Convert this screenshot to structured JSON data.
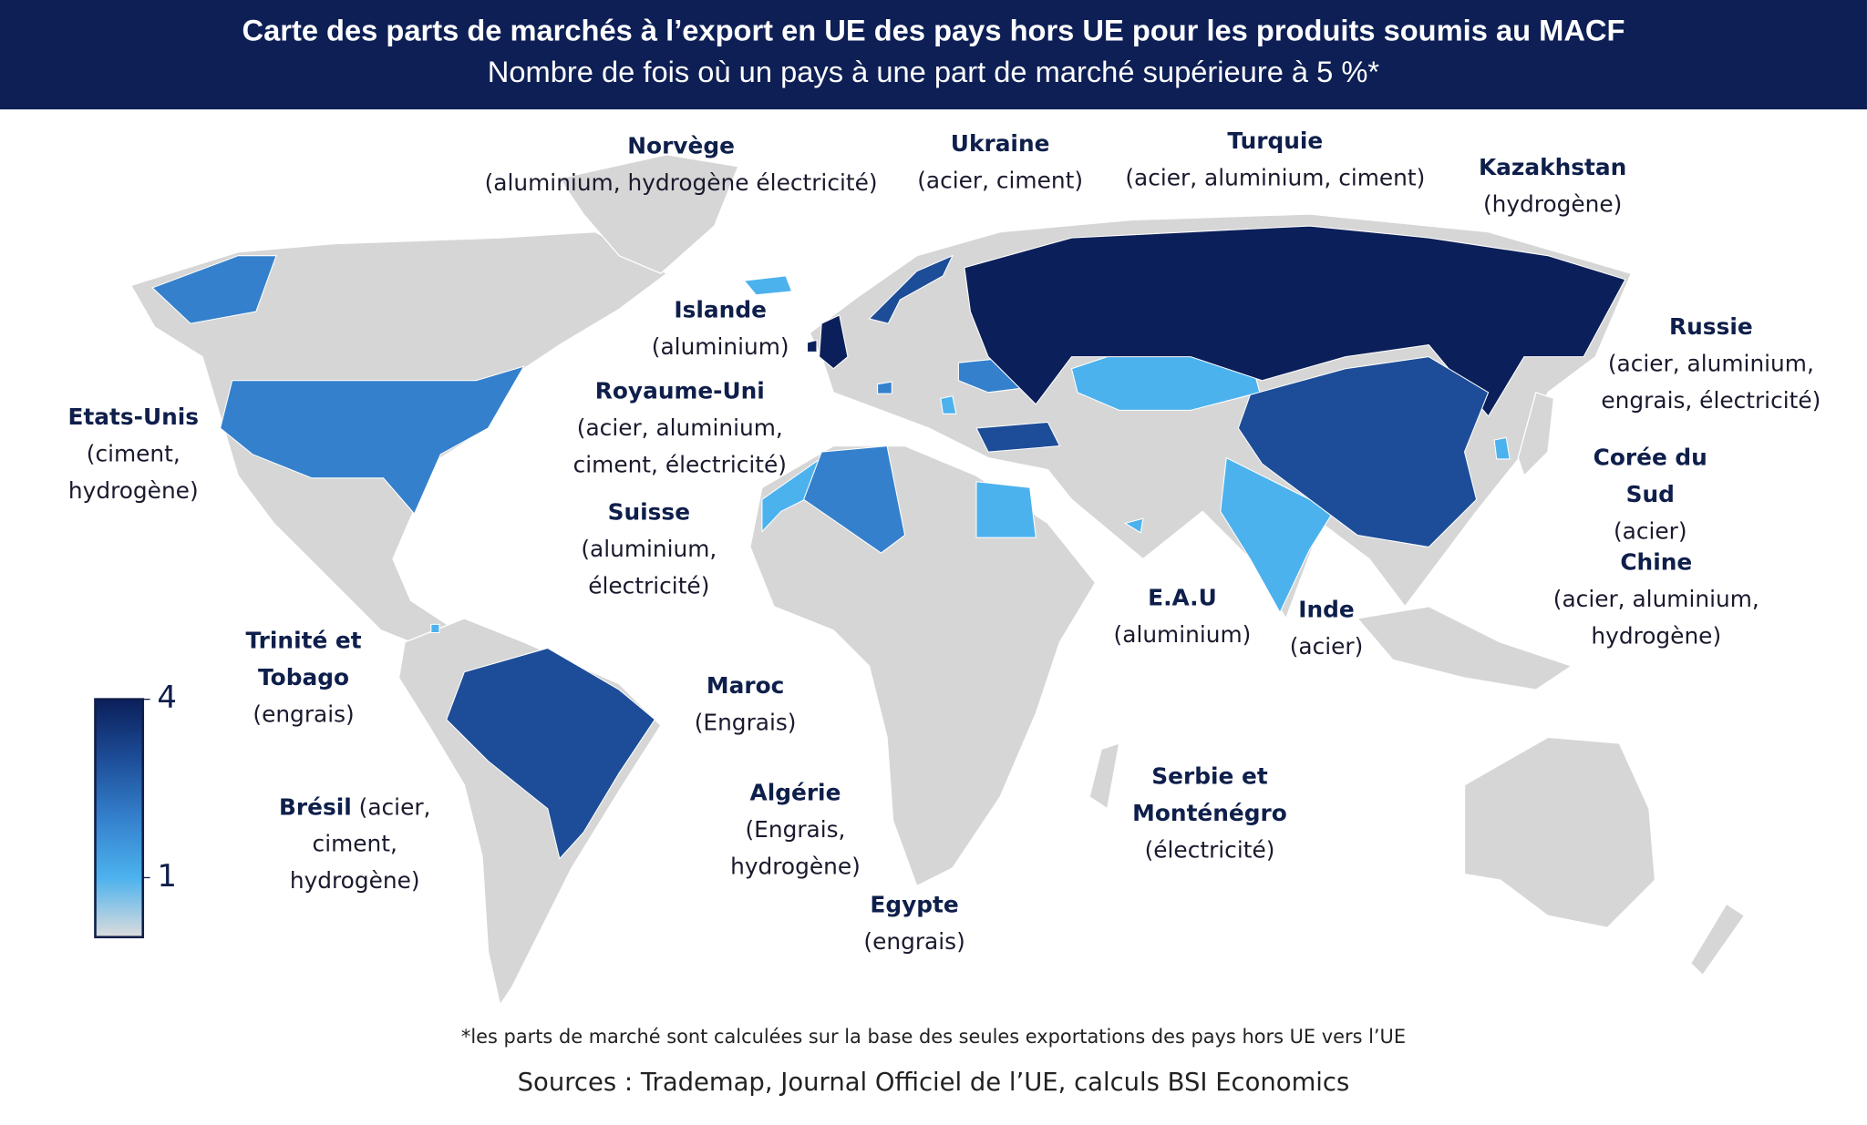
{
  "header": {
    "title": "Carte des parts de marchés à l’export en UE des pays hors UE pour les produits soumis au MACF",
    "subtitle": "Nombre de fois où un pays à une part de marché supérieure à 5 %*"
  },
  "legend": {
    "lim": [
      0,
      4
    ],
    "ticks": [
      4,
      1
    ],
    "stops": [
      {
        "value": 0,
        "color": "#dcdcdc"
      },
      {
        "value": 1,
        "color": "#4cb2ee"
      },
      {
        "value": 2,
        "color": "#3480cc"
      },
      {
        "value": 3,
        "color": "#1d4d98"
      },
      {
        "value": 4,
        "color": "#0b1f5a"
      }
    ]
  },
  "countries": [
    {
      "name": "Norvège",
      "products": "(aluminium, hydrogène électricité)",
      "count": 3
    },
    {
      "name": "Ukraine",
      "products": "(acier, ciment)",
      "count": 2
    },
    {
      "name": "Turquie",
      "products": "(acier, aluminium, ciment)",
      "count": 3
    },
    {
      "name": "Kazakhstan",
      "products": "(hydrogène)",
      "count": 1
    },
    {
      "name": "Islande",
      "products": "(aluminium)",
      "count": 1
    },
    {
      "name": "Royaume-Uni",
      "products": "(acier, aluminium, ciment, électricité)",
      "count": 4
    },
    {
      "name": "Etats-Unis",
      "products": "(ciment, hydrogène)",
      "count": 2
    },
    {
      "name": "Suisse",
      "products": "(aluminium, électricité)",
      "count": 2
    },
    {
      "name": "Trinité et Tobago",
      "products": "(engrais)",
      "count": 1
    },
    {
      "name": "Brésil",
      "products": "(acier, ciment, hydrogène)",
      "count": 3
    },
    {
      "name": "Maroc",
      "products": "(Engrais)",
      "count": 1
    },
    {
      "name": "Algérie",
      "products": "(Engrais, hydrogène)",
      "count": 2
    },
    {
      "name": "Egypte",
      "products": "(engrais)",
      "count": 1
    },
    {
      "name": "Serbie et Monténégro",
      "products": "(électricité)",
      "count": 1
    },
    {
      "name": "E.A.U",
      "products": "(aluminium)",
      "count": 1
    },
    {
      "name": "Inde",
      "products": "(acier)",
      "count": 1
    },
    {
      "name": "Russie",
      "products": "(acier, aluminium, engrais, électricité)",
      "count": 4
    },
    {
      "name": "Corée du Sud",
      "products": "(acier)",
      "count": 1
    },
    {
      "name": "Chine",
      "products": "(acier, aluminium, hydrogène)",
      "count": 3
    }
  ],
  "footnote": "*les parts de marché sont calculées sur la base des seules exportations des pays hors UE vers l’UE",
  "sources": "Sources : Trademap, Journal Officiel de l’UE, calculs BSI Economics"
}
